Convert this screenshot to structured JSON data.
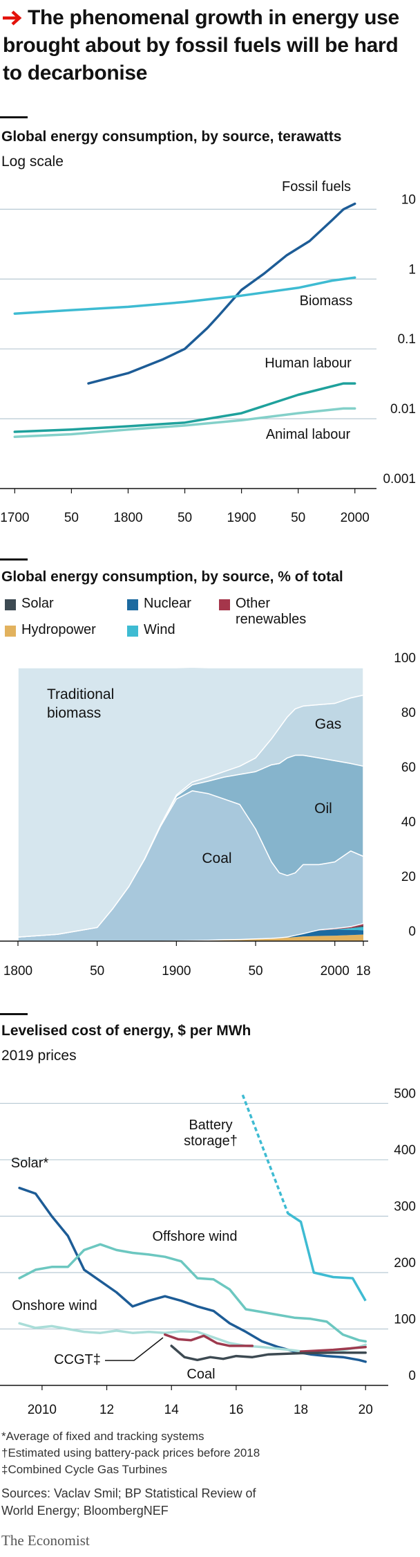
{
  "header": {
    "title": "The phenomenal growth in energy use brought about by fossil fuels will be hard to decarbonise"
  },
  "chart_data": [
    {
      "type": "line",
      "title": "Global energy consumption, by source, terawatts",
      "subtitle": "Log scale",
      "log_scale": true,
      "grid": true,
      "xlim": [
        1687,
        2016
      ],
      "xticks": [
        1700,
        {
          "value": 1750,
          "label": "50"
        },
        1800,
        {
          "value": 1850,
          "label": "50"
        },
        1900,
        {
          "value": 1950,
          "label": "50"
        },
        2000
      ],
      "ylim": [
        0.001,
        20
      ],
      "yticks": [
        0.001,
        0.01,
        0.1,
        1,
        10
      ],
      "series": [
        {
          "name": "Fossil fuels",
          "color": "#1d5c96",
          "x": [
            1765,
            1800,
            1830,
            1850,
            1870,
            1880,
            1900,
            1920,
            1940,
            1960,
            1980,
            1990,
            2000
          ],
          "values": [
            0.032,
            0.045,
            0.07,
            0.1,
            0.2,
            0.3,
            0.7,
            1.2,
            2.2,
            3.5,
            7,
            10,
            12
          ]
        },
        {
          "name": "Biomass",
          "color": "#3ebbd2",
          "x": [
            1700,
            1750,
            1800,
            1850,
            1900,
            1950,
            1980,
            2000
          ],
          "values": [
            0.32,
            0.36,
            0.4,
            0.47,
            0.58,
            0.75,
            0.95,
            1.05
          ]
        },
        {
          "name": "Human labour",
          "color": "#1fa19c",
          "x": [
            1700,
            1750,
            1800,
            1850,
            1900,
            1950,
            1990,
            2000
          ],
          "values": [
            0.0065,
            0.007,
            0.0078,
            0.0088,
            0.012,
            0.022,
            0.032,
            0.032
          ]
        },
        {
          "name": "Animal labour",
          "color": "#83d0c9",
          "x": [
            1700,
            1750,
            1800,
            1850,
            1900,
            1950,
            1990,
            2000
          ],
          "values": [
            0.0055,
            0.006,
            0.007,
            0.008,
            0.0095,
            0.012,
            0.014,
            0.014
          ]
        }
      ]
    },
    {
      "type": "stacked_area",
      "title": "Global energy consumption, by source, % of total",
      "grid": false,
      "x": [
        1800,
        1825,
        1850,
        1860,
        1870,
        1880,
        1890,
        1900,
        1910,
        1920,
        1930,
        1940,
        1950,
        1960,
        1965,
        1970,
        1975,
        1980,
        1990,
        2000,
        2010,
        2018
      ],
      "xlim": [
        1800,
        2018
      ],
      "xticks": [
        1800,
        {
          "value": 1850,
          "label": "50"
        },
        1900,
        {
          "value": 1950,
          "label": "50"
        },
        2000,
        {
          "value": 2018,
          "label": "18"
        }
      ],
      "ylim": [
        0,
        100
      ],
      "yticks": [
        0,
        20,
        40,
        60,
        80,
        100
      ],
      "series": [
        {
          "name": "Hydropower",
          "color": "#e2b25e",
          "values": [
            0,
            0,
            0,
            0,
            0,
            0,
            0,
            0.1,
            0.2,
            0.3,
            0.5,
            0.6,
            0.8,
            1,
            1.1,
            1.3,
            1.5,
            1.7,
            1.9,
            2,
            2.2,
            2.4
          ]
        },
        {
          "name": "Nuclear",
          "color": "#1c6aa0",
          "values": [
            0,
            0,
            0,
            0,
            0,
            0,
            0,
            0,
            0,
            0,
            0,
            0,
            0,
            0,
            0.1,
            0.2,
            0.6,
            1,
            2,
            2.2,
            1.9,
            1.6
          ]
        },
        {
          "name": "Wind",
          "color": "#3ebbd2",
          "values": [
            0,
            0,
            0,
            0,
            0,
            0,
            0,
            0,
            0,
            0,
            0,
            0,
            0,
            0,
            0,
            0,
            0,
            0,
            0,
            0.1,
            0.6,
            1.2
          ]
        },
        {
          "name": "Solar",
          "color": "#3d4a52",
          "values": [
            0,
            0,
            0,
            0,
            0,
            0,
            0,
            0,
            0,
            0,
            0,
            0,
            0,
            0,
            0,
            0,
            0,
            0,
            0,
            0,
            0.1,
            0.5
          ]
        },
        {
          "name": "Other renewables",
          "color": "#a5364b",
          "values": [
            0,
            0,
            0,
            0,
            0,
            0,
            0,
            0,
            0,
            0,
            0,
            0,
            0,
            0,
            0,
            0,
            0,
            0,
            0.2,
            0.3,
            0.5,
            0.7
          ]
        },
        {
          "name": "Coal",
          "color": "#a8c8dc",
          "values": [
            1.5,
            2.5,
            5,
            12,
            20,
            30,
            42,
            51.9,
            54.8,
            53.7,
            51.5,
            49.4,
            40.2,
            28,
            23.8,
            22.5,
            22.9,
            25.3,
            23.9,
            24.4,
            27.7,
            24.6
          ]
        },
        {
          "name": "Oil",
          "color": "#86b4cc",
          "values": [
            0,
            0,
            0,
            0,
            0,
            0.2,
            0.5,
            1,
            2.2,
            4.5,
            8,
            11,
            21,
            35.5,
            40,
            43,
            43,
            40,
            39,
            37,
            32,
            33
          ]
        },
        {
          "name": "Gas",
          "color": "#bfd7e4",
          "values": [
            0,
            0,
            0,
            0,
            0,
            0,
            0,
            0.5,
            1,
            1.5,
            2,
            3,
            5,
            9.5,
            13,
            15,
            17,
            18,
            19.5,
            21,
            24,
            26
          ]
        },
        {
          "name": "Traditional biomass",
          "color": "#d6e6ee",
          "values": [
            98.5,
            97.5,
            95,
            88,
            80,
            69.8,
            57.5,
            46.5,
            42,
            40,
            38,
            36,
            33,
            26,
            22,
            18,
            15,
            14,
            13.5,
            13,
            11,
            10
          ]
        }
      ]
    },
    {
      "type": "line",
      "title": "Levelised cost of energy, $ per MWh",
      "subtitle": "2019 prices",
      "grid": true,
      "xlim": [
        2008.7,
        2020.7
      ],
      "xticks": [
        2010,
        {
          "value": 2012,
          "label": "12"
        },
        {
          "value": 2014,
          "label": "14"
        },
        {
          "value": 2016,
          "label": "16"
        },
        {
          "value": 2018,
          "label": "18"
        },
        {
          "value": 2020,
          "label": "20"
        }
      ],
      "ylim": [
        0,
        530
      ],
      "yticks": [
        0,
        100,
        200,
        300,
        400,
        500
      ],
      "series": [
        {
          "name": "Solar*",
          "color": "#1d5c96",
          "x": [
            2009.3,
            2009.8,
            2010.3,
            2010.8,
            2011.3,
            2011.8,
            2012.3,
            2012.8,
            2013.3,
            2013.8,
            2014.3,
            2014.8,
            2015.3,
            2015.8,
            2016.3,
            2016.8,
            2017.3,
            2017.8,
            2018.3,
            2018.8,
            2019.3,
            2019.8,
            2020
          ],
          "values": [
            350,
            340,
            300,
            265,
            205,
            185,
            165,
            140,
            150,
            158,
            150,
            140,
            132,
            110,
            95,
            78,
            68,
            60,
            55,
            52,
            50,
            45,
            42
          ]
        },
        {
          "name": "Offshore wind",
          "color": "#6cc7c0",
          "x": [
            2009.3,
            2009.8,
            2010.3,
            2010.8,
            2011.3,
            2011.8,
            2012.3,
            2012.8,
            2013.3,
            2013.8,
            2014.3,
            2014.8,
            2015.3,
            2015.8,
            2016.3,
            2016.8,
            2017.3,
            2017.8,
            2018.3,
            2018.8,
            2019.3,
            2019.8,
            2020
          ],
          "values": [
            190,
            205,
            210,
            210,
            240,
            250,
            240,
            235,
            232,
            228,
            220,
            190,
            188,
            170,
            135,
            130,
            125,
            120,
            118,
            113,
            90,
            80,
            78
          ]
        },
        {
          "name": "Onshore wind",
          "color": "#a9ddd8",
          "x": [
            2009.3,
            2009.8,
            2010.3,
            2010.8,
            2011.3,
            2011.8,
            2012.3,
            2012.8,
            2013.3,
            2013.8,
            2014.3,
            2014.8,
            2015.3,
            2015.8,
            2016.3,
            2016.8,
            2017.3,
            2017.8,
            2018.3,
            2018.8,
            2019.3,
            2019.8,
            2020
          ],
          "values": [
            110,
            102,
            105,
            100,
            95,
            93,
            97,
            93,
            95,
            93,
            96,
            95,
            85,
            75,
            70,
            68,
            65,
            62,
            58,
            60,
            62,
            68,
            72
          ]
        },
        {
          "name": "Battery storage†",
          "color": "#3ebbd2",
          "dashed_before": 2017.6,
          "x": [
            2016.2,
            2017.6,
            2018,
            2018.4,
            2019,
            2019.6,
            2020
          ],
          "values": [
            515,
            305,
            290,
            200,
            192,
            190,
            150
          ]
        },
        {
          "name": "CCGT‡",
          "color": "#9e3a4e",
          "x": [
            2013.8,
            2014.2,
            2014.6,
            2015,
            2015.4,
            2015.8,
            2016.5,
            2017,
            2018,
            2019,
            2020
          ],
          "values": [
            90,
            82,
            80,
            88,
            75,
            70,
            70,
            null,
            60,
            63,
            68
          ]
        },
        {
          "name": "Coal",
          "color": "#3d4a52",
          "x": [
            2014,
            2014.4,
            2014.8,
            2015.2,
            2015.6,
            2016,
            2016.5,
            2017,
            2018,
            2019,
            2020
          ],
          "values": [
            70,
            50,
            45,
            50,
            47,
            52,
            50,
            55,
            57,
            58,
            58
          ]
        }
      ]
    }
  ],
  "footnotes": [
    "*Average of fixed and tracking systems",
    "†Estimated using battery-pack prices before 2018",
    "‡Combined Cycle Gas Turbines"
  ],
  "sources": "Sources: Vaclav Smil; BP Statistical Review of World Energy; BloombergNEF",
  "publisher": "The Economist"
}
